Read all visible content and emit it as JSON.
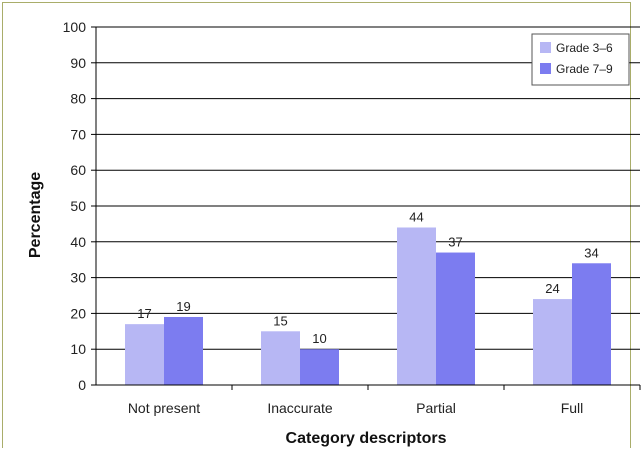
{
  "chart_data": {
    "type": "bar",
    "title": "",
    "xlabel": "Category descriptors",
    "ylabel": "Percentage",
    "ylim": [
      0,
      100
    ],
    "yticks": [
      0,
      10,
      20,
      30,
      40,
      50,
      60,
      70,
      80,
      90,
      100
    ],
    "grid": true,
    "legend_position": "top-right",
    "categories": [
      "Not present",
      "Inaccurate",
      "Partial",
      "Full"
    ],
    "series": [
      {
        "name": "Grade 3–6",
        "values": [
          17,
          15,
          44,
          24
        ],
        "color": "#b7b7f4"
      },
      {
        "name": "Grade 7–9",
        "values": [
          19,
          10,
          37,
          34
        ],
        "color": "#7c7cf0"
      }
    ]
  }
}
